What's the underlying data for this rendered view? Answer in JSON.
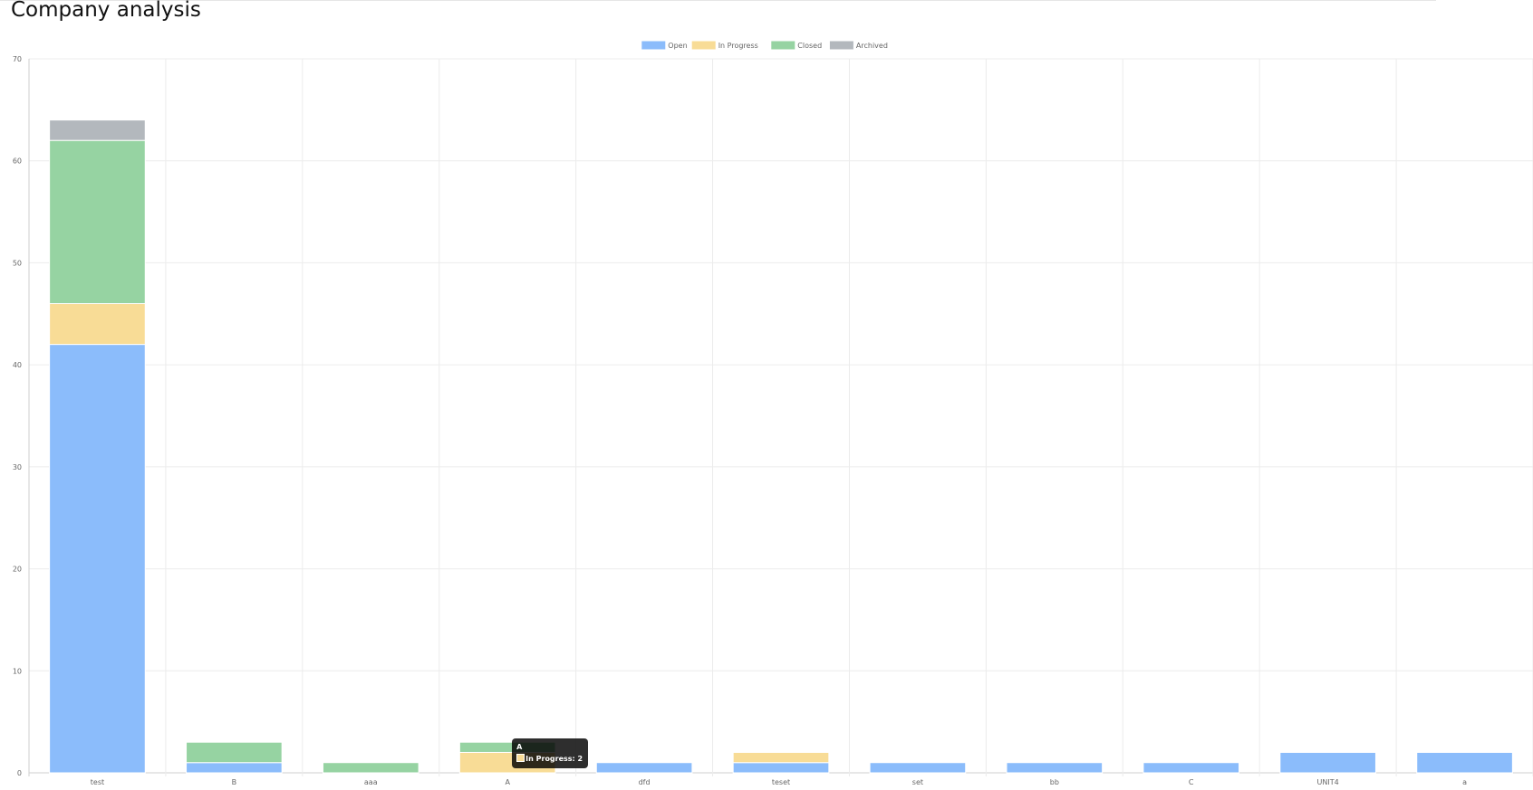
{
  "page": {
    "title": "Company analysis"
  },
  "chart_data": {
    "type": "bar",
    "stacked": true,
    "categories": [
      "test",
      "B",
      "aaa",
      "A",
      "dfd",
      "teset",
      "set",
      "bb",
      "C",
      "UNIT4",
      "a"
    ],
    "series": [
      {
        "name": "Open",
        "color": "#8bbcfb",
        "values": [
          42,
          1,
          0,
          0,
          1,
          1,
          1,
          1,
          1,
          2,
          2
        ]
      },
      {
        "name": "In Progress",
        "color": "#f8dc96",
        "values": [
          4,
          0,
          0,
          2,
          0,
          1,
          0,
          0,
          0,
          0,
          0
        ]
      },
      {
        "name": "Closed",
        "color": "#96d3a2",
        "values": [
          16,
          2,
          1,
          1,
          0,
          0,
          0,
          0,
          0,
          0,
          0
        ]
      },
      {
        "name": "Archived",
        "color": "#b3b8bd",
        "values": [
          2,
          0,
          0,
          0,
          0,
          0,
          0,
          0,
          0,
          0,
          0
        ]
      }
    ],
    "ylim": [
      0,
      70
    ],
    "yticks": [
      0,
      10,
      20,
      30,
      40,
      50,
      60,
      70
    ],
    "grid": true,
    "legend_position": "top",
    "tooltip": {
      "title": "A",
      "label": "In Progress: 2",
      "color": "#f8dc96"
    }
  }
}
